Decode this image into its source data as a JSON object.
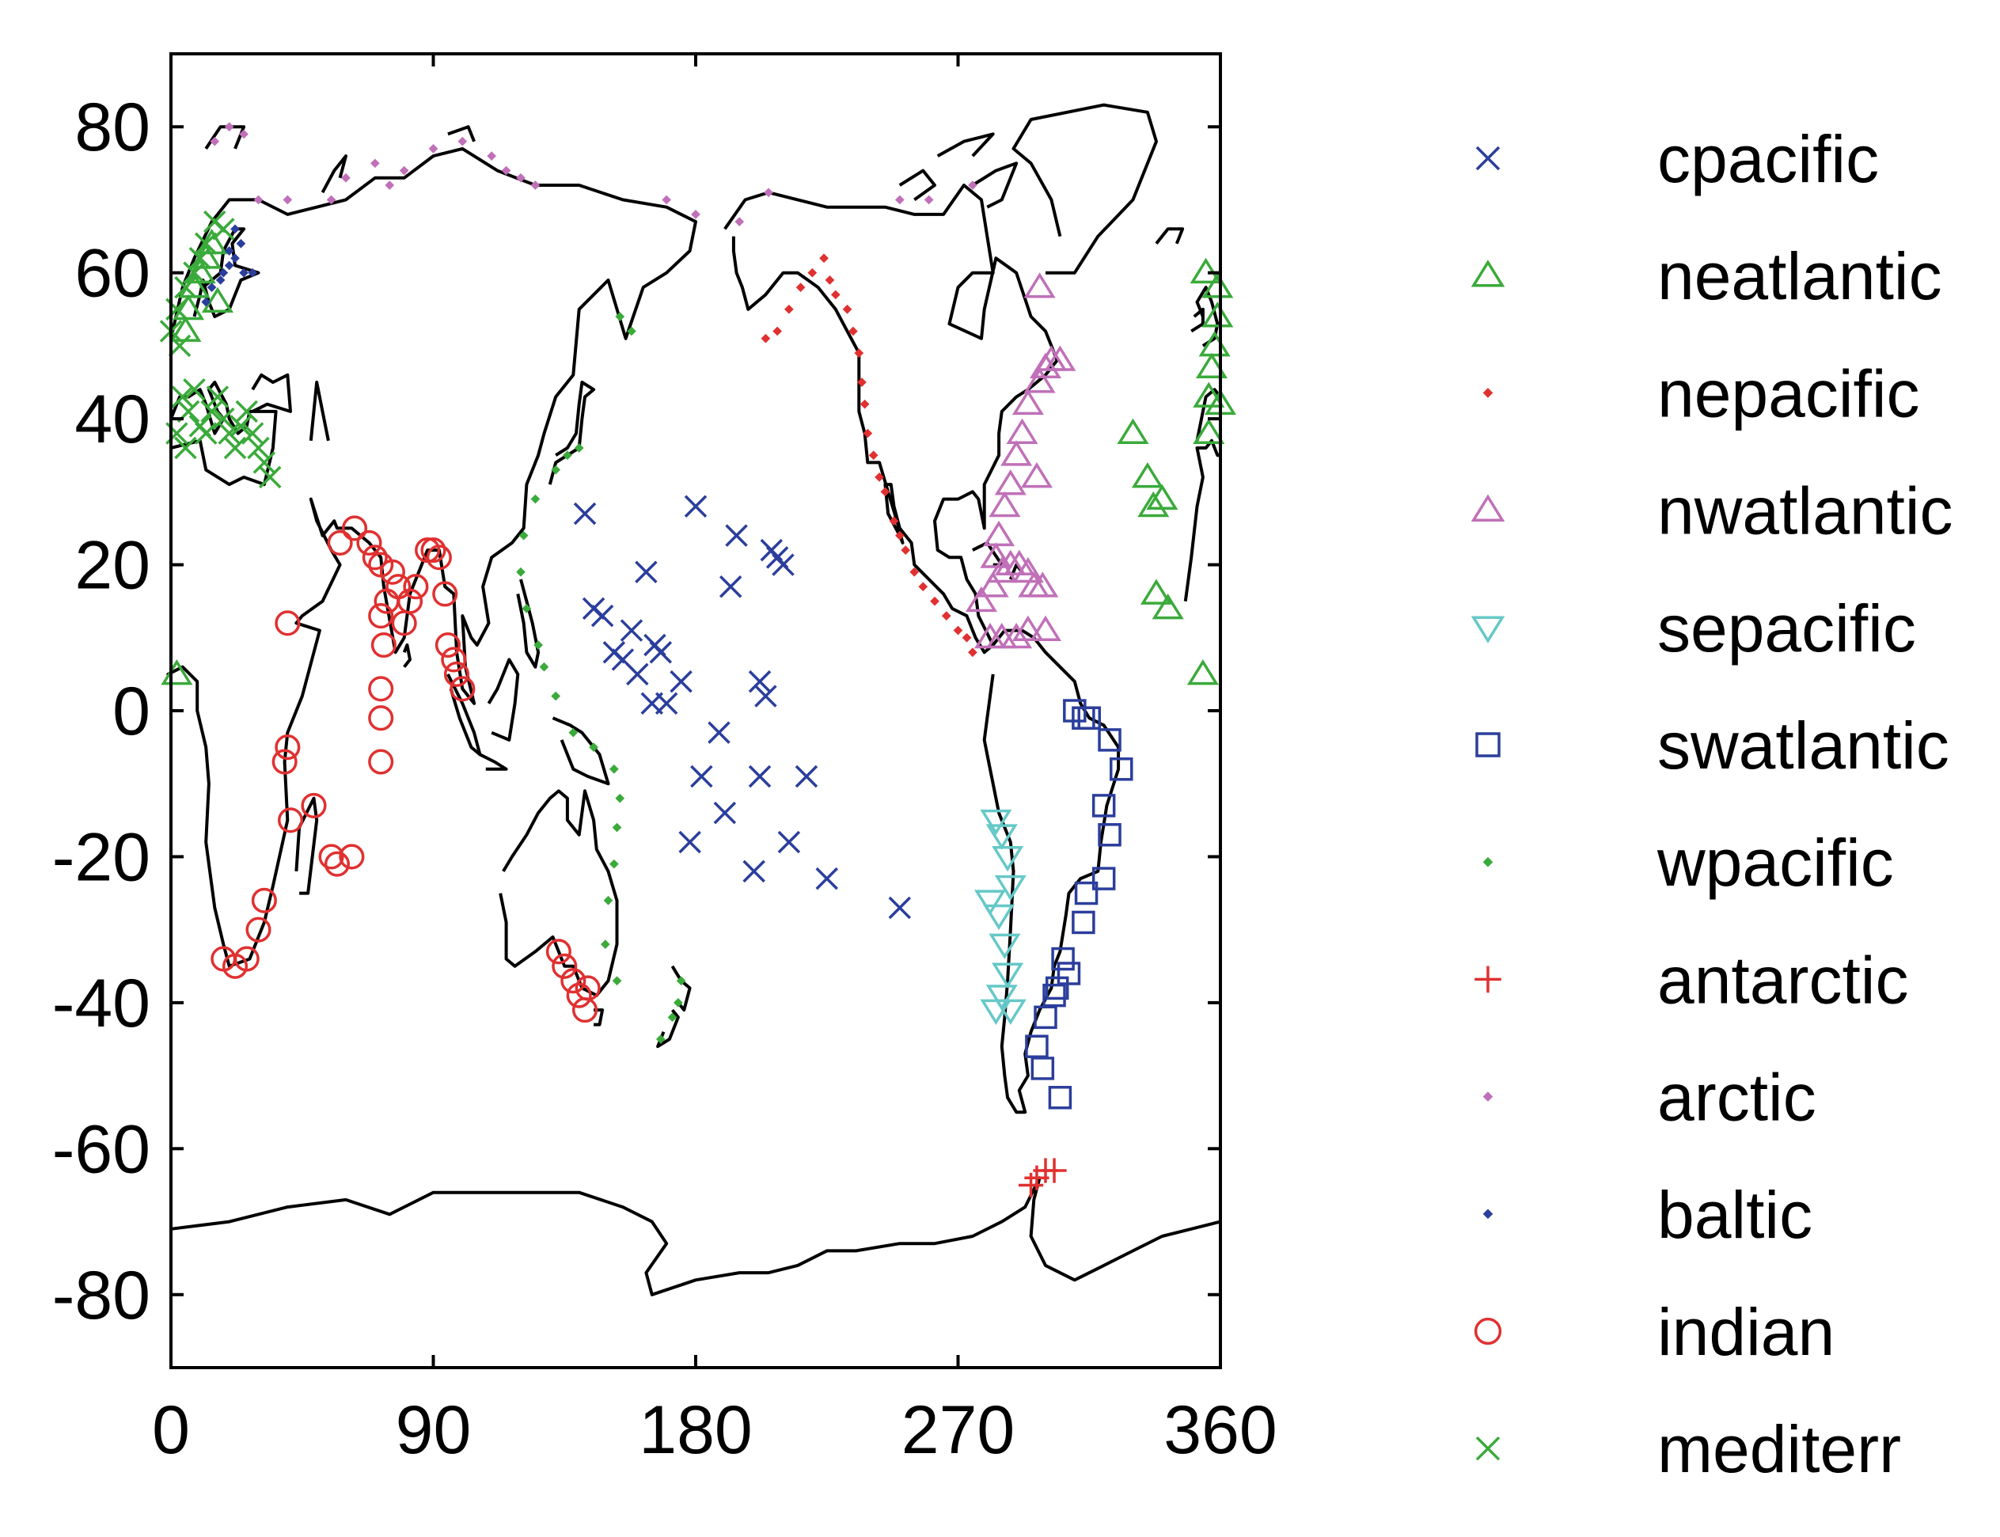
{
  "chart_data": {
    "type": "scatter",
    "title": "",
    "xlabel": "",
    "ylabel": "",
    "xlim": [
      0,
      360
    ],
    "ylim": [
      -90,
      90
    ],
    "xticks": [
      "0",
      "90",
      "180",
      "270",
      "360"
    ],
    "yticks": [
      "80",
      "60",
      "40",
      "20",
      "0",
      "-20",
      "-40",
      "-60",
      "-80"
    ],
    "grid": false,
    "legend_position": "right, outside plot",
    "background_map": "world coastlines",
    "series": [
      {
        "name": "cpacific",
        "marker": "x",
        "color": "#2b3e9c",
        "filled": false,
        "points": [
          [
            142,
            27
          ],
          [
            145,
            14
          ],
          [
            148,
            13
          ],
          [
            152,
            8
          ],
          [
            155,
            7
          ],
          [
            158,
            11
          ],
          [
            160,
            5
          ],
          [
            163,
            19
          ],
          [
            165,
            1
          ],
          [
            166,
            9
          ],
          [
            168,
            8
          ],
          [
            170,
            1
          ],
          [
            175,
            4
          ],
          [
            180,
            28
          ],
          [
            182,
            -9
          ],
          [
            188,
            -3
          ],
          [
            190,
            -14
          ],
          [
            192,
            17
          ],
          [
            194,
            24
          ],
          [
            200,
            -22
          ],
          [
            202,
            4
          ],
          [
            202,
            -9
          ],
          [
            204,
            2
          ],
          [
            206,
            22
          ],
          [
            208,
            21
          ],
          [
            210,
            20
          ],
          [
            212,
            -18
          ],
          [
            218,
            -9
          ],
          [
            225,
            -23
          ],
          [
            250,
            -27
          ],
          [
            178,
            -18
          ]
        ]
      },
      {
        "name": "neatlantic",
        "marker": "triangle-up",
        "color": "#3aaa3a",
        "filled": false,
        "points": [
          [
            2,
            5
          ],
          [
            5,
            52
          ],
          [
            6,
            55
          ],
          [
            8,
            58
          ],
          [
            10,
            60
          ],
          [
            12,
            62
          ],
          [
            14,
            64
          ],
          [
            16,
            56
          ],
          [
            330,
            38
          ],
          [
            335,
            32
          ],
          [
            337,
            28
          ],
          [
            340,
            29
          ],
          [
            338,
            16
          ],
          [
            342,
            14
          ],
          [
            354,
            5
          ],
          [
            356,
            38
          ],
          [
            356,
            43
          ],
          [
            357,
            47
          ],
          [
            358,
            50
          ],
          [
            359,
            54
          ],
          [
            359,
            58
          ],
          [
            360,
            42
          ],
          [
            355,
            60
          ]
        ]
      },
      {
        "name": "nepacific",
        "marker": "dot",
        "color": "#e03030",
        "filled": true,
        "points": [
          [
            204,
            51
          ],
          [
            208,
            52
          ],
          [
            212,
            55
          ],
          [
            216,
            58
          ],
          [
            220,
            60
          ],
          [
            224,
            62
          ],
          [
            226,
            59
          ],
          [
            228,
            57
          ],
          [
            232,
            55
          ],
          [
            234,
            52
          ],
          [
            236,
            49
          ],
          [
            237,
            45
          ],
          [
            238,
            42
          ],
          [
            239,
            38
          ],
          [
            241,
            35
          ],
          [
            243,
            32
          ],
          [
            245,
            30
          ],
          [
            248,
            26
          ],
          [
            250,
            24
          ],
          [
            252,
            22
          ],
          [
            255,
            19
          ],
          [
            258,
            17
          ],
          [
            262,
            15
          ],
          [
            266,
            13
          ],
          [
            270,
            11
          ],
          [
            273,
            10
          ],
          [
            275,
            8
          ]
        ]
      },
      {
        "name": "nwatlantic",
        "marker": "triangle-up",
        "color": "#c070b8",
        "filled": false,
        "points": [
          [
            298,
            45
          ],
          [
            300,
            47
          ],
          [
            302,
            48
          ],
          [
            305,
            48
          ],
          [
            294,
            42
          ],
          [
            292,
            38
          ],
          [
            290,
            35
          ],
          [
            288,
            31
          ],
          [
            286,
            28
          ],
          [
            284,
            24
          ],
          [
            283,
            21
          ],
          [
            282,
            17
          ],
          [
            285,
            19
          ],
          [
            288,
            20
          ],
          [
            291,
            20
          ],
          [
            294,
            19
          ],
          [
            296,
            17
          ],
          [
            299,
            17
          ],
          [
            278,
            15
          ],
          [
            281,
            10
          ],
          [
            285,
            10
          ],
          [
            290,
            10
          ],
          [
            294,
            11
          ],
          [
            300,
            11
          ],
          [
            297,
            32
          ],
          [
            298,
            58
          ]
        ]
      },
      {
        "name": "sepacific",
        "marker": "triangle-down",
        "color": "#66c8c8",
        "filled": false,
        "points": [
          [
            283,
            -15
          ],
          [
            285,
            -17
          ],
          [
            287,
            -20
          ],
          [
            288,
            -24
          ],
          [
            281,
            -26
          ],
          [
            284,
            -28
          ],
          [
            286,
            -32
          ],
          [
            287,
            -36
          ],
          [
            285,
            -39
          ],
          [
            283,
            -41
          ],
          [
            288,
            -41
          ]
        ]
      },
      {
        "name": "swatlantic",
        "marker": "square",
        "color": "#2b3e9c",
        "filled": false,
        "points": [
          [
            310,
            0
          ],
          [
            313,
            -1
          ],
          [
            315,
            -1
          ],
          [
            322,
            -4
          ],
          [
            326,
            -8
          ],
          [
            320,
            -13
          ],
          [
            322,
            -17
          ],
          [
            320,
            -23
          ],
          [
            314,
            -25
          ],
          [
            313,
            -29
          ],
          [
            306,
            -34
          ],
          [
            308,
            -36
          ],
          [
            303,
            -39
          ],
          [
            300,
            -42
          ],
          [
            297,
            -46
          ],
          [
            299,
            -49
          ],
          [
            305,
            -53
          ],
          [
            304,
            -38
          ]
        ]
      },
      {
        "name": "wpacific",
        "marker": "dot",
        "color": "#3aaa3a",
        "filled": true,
        "points": [
          [
            125,
            29
          ],
          [
            121,
            24
          ],
          [
            120,
            19
          ],
          [
            122,
            14
          ],
          [
            126,
            9
          ],
          [
            128,
            6
          ],
          [
            132,
            2
          ],
          [
            138,
            -3
          ],
          [
            145,
            -5
          ],
          [
            152,
            -8
          ],
          [
            154,
            -12
          ],
          [
            153,
            -16
          ],
          [
            152,
            -21
          ],
          [
            150,
            -26
          ],
          [
            149,
            -32
          ],
          [
            153,
            -37
          ],
          [
            175,
            -37
          ],
          [
            174,
            -40
          ],
          [
            172,
            -42
          ],
          [
            168,
            -45
          ],
          [
            140,
            36
          ],
          [
            136,
            35
          ],
          [
            132,
            33
          ],
          [
            154,
            54
          ],
          [
            158,
            52
          ]
        ]
      },
      {
        "name": "antarctic",
        "marker": "plus",
        "color": "#e03030",
        "filled": false,
        "points": [
          [
            295,
            -65
          ],
          [
            297,
            -64
          ],
          [
            300,
            -63
          ],
          [
            303,
            -63
          ]
        ]
      },
      {
        "name": "arctic",
        "marker": "dot",
        "color": "#c070b8",
        "filled": true,
        "points": [
          [
            15,
            78
          ],
          [
            20,
            80
          ],
          [
            25,
            79
          ],
          [
            30,
            70
          ],
          [
            40,
            70
          ],
          [
            55,
            70
          ],
          [
            60,
            73
          ],
          [
            70,
            75
          ],
          [
            75,
            72
          ],
          [
            80,
            74
          ],
          [
            90,
            77
          ],
          [
            100,
            78
          ],
          [
            110,
            76
          ],
          [
            115,
            74
          ],
          [
            120,
            73
          ],
          [
            125,
            72
          ],
          [
            250,
            70
          ],
          [
            260,
            70
          ],
          [
            275,
            72
          ],
          [
            205,
            71
          ],
          [
            195,
            67
          ],
          [
            180,
            68
          ],
          [
            170,
            70
          ]
        ]
      },
      {
        "name": "baltic",
        "marker": "dot",
        "color": "#2b3e9c",
        "filled": true,
        "points": [
          [
            12,
            56
          ],
          [
            14,
            58
          ],
          [
            17,
            59
          ],
          [
            18,
            60
          ],
          [
            20,
            61
          ],
          [
            22,
            62
          ],
          [
            24,
            64
          ],
          [
            22,
            66
          ],
          [
            20,
            63
          ],
          [
            25,
            60
          ],
          [
            28,
            60
          ]
        ]
      },
      {
        "name": "indian",
        "marker": "circle",
        "color": "#e03030",
        "filled": false,
        "points": [
          [
            58,
            23
          ],
          [
            63,
            25
          ],
          [
            68,
            23
          ],
          [
            70,
            21
          ],
          [
            72,
            20
          ],
          [
            72,
            13
          ],
          [
            73,
            9
          ],
          [
            74,
            15
          ],
          [
            76,
            19
          ],
          [
            78,
            17
          ],
          [
            80,
            12
          ],
          [
            82,
            15
          ],
          [
            84,
            17
          ],
          [
            88,
            22
          ],
          [
            90,
            22
          ],
          [
            92,
            21
          ],
          [
            94,
            16
          ],
          [
            95,
            9
          ],
          [
            97,
            7
          ],
          [
            98,
            5
          ],
          [
            100,
            3
          ],
          [
            72,
            3
          ],
          [
            72,
            -1
          ],
          [
            72,
            -7
          ],
          [
            40,
            12
          ],
          [
            40,
            -5
          ],
          [
            39,
            -7
          ],
          [
            41,
            -15
          ],
          [
            49,
            -13
          ],
          [
            55,
            -20
          ],
          [
            57,
            -21
          ],
          [
            62,
            -20
          ],
          [
            32,
            -26
          ],
          [
            30,
            -30
          ],
          [
            26,
            -34
          ],
          [
            22,
            -35
          ],
          [
            18,
            -34
          ],
          [
            133,
            -33
          ],
          [
            135,
            -35
          ],
          [
            138,
            -37
          ],
          [
            140,
            -39
          ],
          [
            142,
            -41
          ],
          [
            143,
            -38
          ]
        ]
      },
      {
        "name": "mediterr",
        "marker": "x",
        "color": "#3aaa3a",
        "filled": false,
        "points": [
          [
            0,
            52
          ],
          [
            2,
            55
          ],
          [
            5,
            58
          ],
          [
            8,
            60
          ],
          [
            10,
            62
          ],
          [
            12,
            64
          ],
          [
            15,
            67
          ],
          [
            18,
            66
          ],
          [
            3,
            50
          ],
          [
            4,
            43
          ],
          [
            6,
            41
          ],
          [
            8,
            44
          ],
          [
            10,
            39
          ],
          [
            12,
            38
          ],
          [
            14,
            41
          ],
          [
            16,
            43
          ],
          [
            18,
            40
          ],
          [
            20,
            38
          ],
          [
            22,
            36
          ],
          [
            24,
            39
          ],
          [
            26,
            41
          ],
          [
            28,
            38
          ],
          [
            30,
            36
          ],
          [
            32,
            34
          ],
          [
            34,
            32
          ],
          [
            2,
            38
          ],
          [
            5,
            36
          ]
        ]
      }
    ]
  }
}
